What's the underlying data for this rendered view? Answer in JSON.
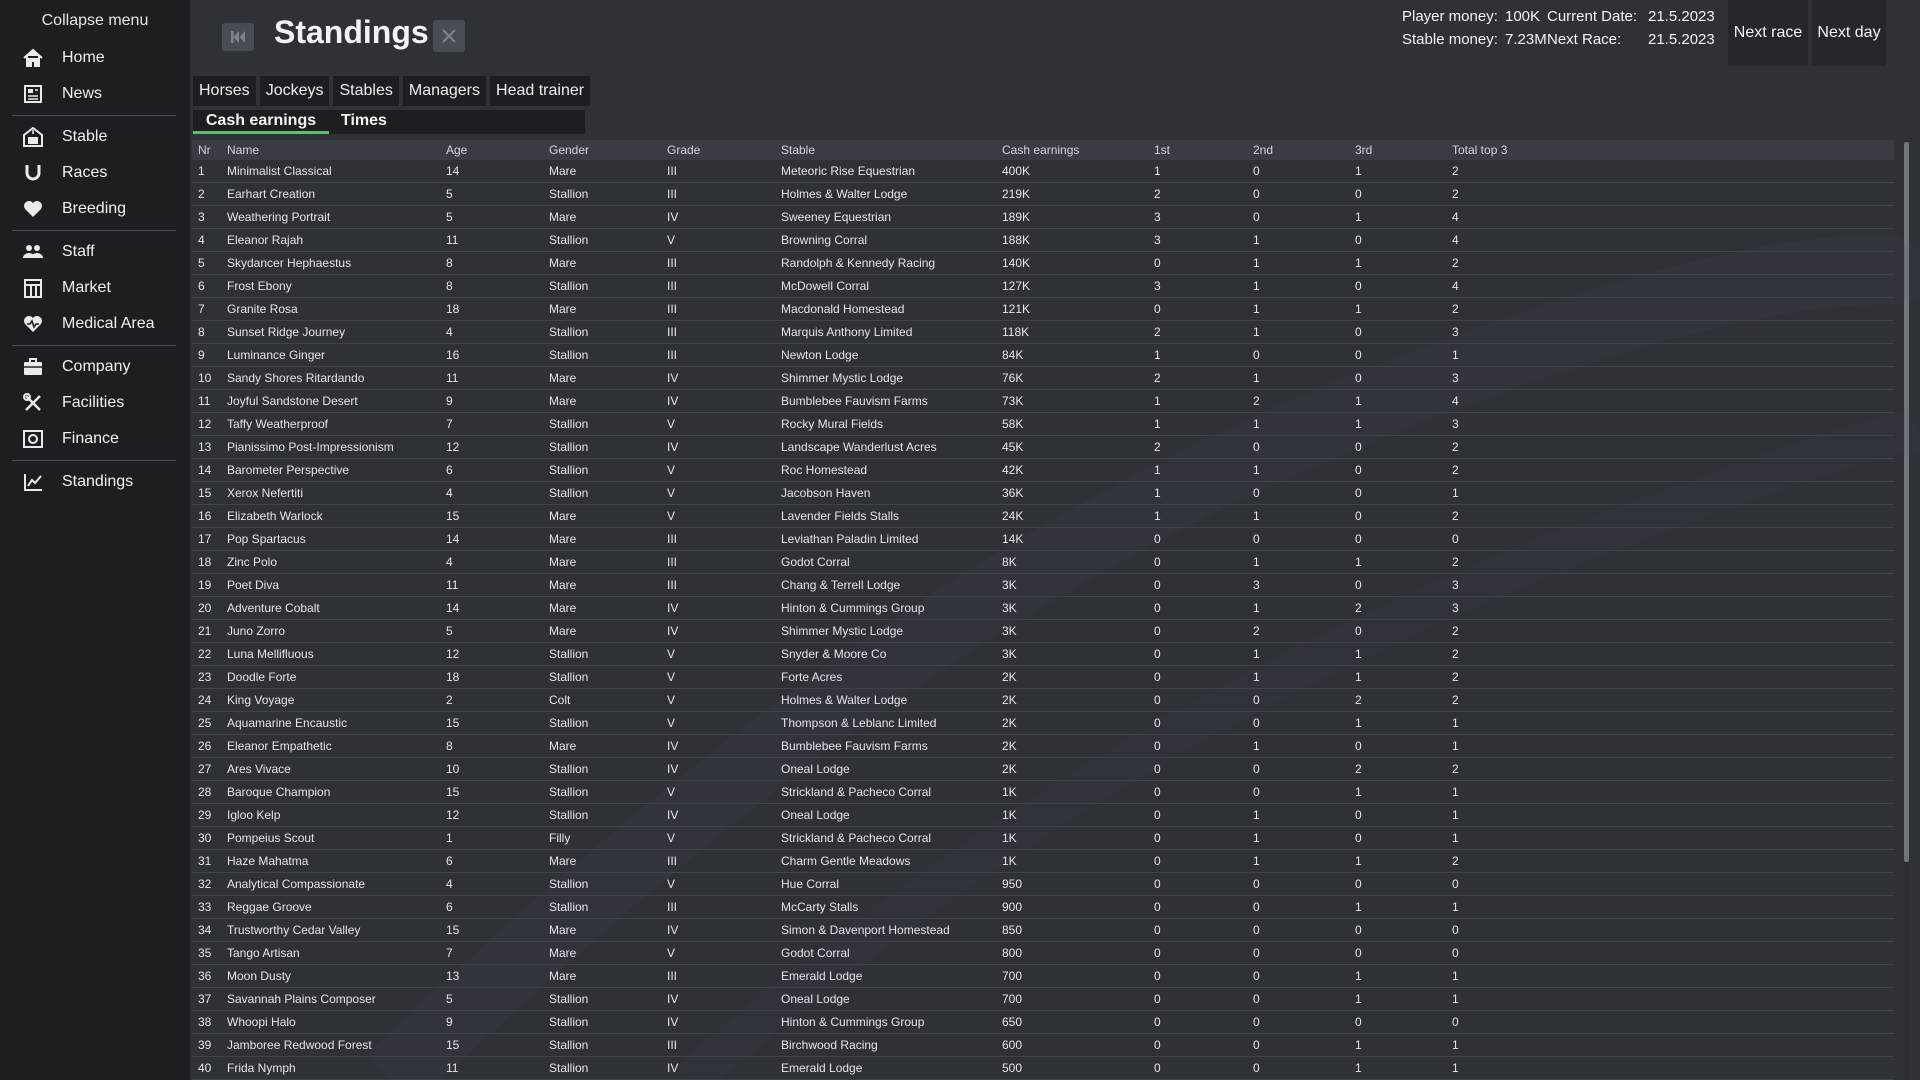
{
  "sidebar": {
    "collapse_label": "Collapse menu",
    "items": [
      {
        "label": "Home",
        "icon": "home-icon"
      },
      {
        "label": "News",
        "icon": "news-icon"
      },
      {
        "label": "Stable",
        "icon": "stable-icon"
      },
      {
        "label": "Races",
        "icon": "horseshoe-icon"
      },
      {
        "label": "Breeding",
        "icon": "heart-icon"
      },
      {
        "label": "Staff",
        "icon": "people-icon"
      },
      {
        "label": "Market",
        "icon": "market-icon"
      },
      {
        "label": "Medical Area",
        "icon": "medical-heart-icon"
      },
      {
        "label": "Company",
        "icon": "briefcase-icon"
      },
      {
        "label": "Facilities",
        "icon": "tools-icon"
      },
      {
        "label": "Finance",
        "icon": "finance-icon"
      },
      {
        "label": "Standings",
        "icon": "chart-line-icon"
      }
    ]
  },
  "header": {
    "title": "Standings",
    "player_money_label": "Player money:",
    "player_money": "100K",
    "current_date_label": "Current Date:",
    "current_date": "21.5.2023",
    "stable_money_label": "Stable money:",
    "stable_money": "7.23M",
    "next_race_label": "Next Race:",
    "next_race_date": "21.5.2023",
    "next_race_button": "Next race",
    "next_day_button": "Next day"
  },
  "tabs": {
    "categories": [
      "Horses",
      "Jockeys",
      "Stables",
      "Managers",
      "Head trainer"
    ],
    "active_category": "Horses",
    "sub": [
      "Cash earnings",
      "Times"
    ],
    "active_sub": "Cash earnings"
  },
  "colors": {
    "accent": "#5fbf6c",
    "sidebar_bg": "#1c1e22",
    "main_bg": "#2e3136"
  },
  "table": {
    "columns": [
      "Nr",
      "Name",
      "Age",
      "Gender",
      "Grade",
      "Stable",
      "Cash earnings",
      "1st",
      "2nd",
      "3rd",
      "Total top 3"
    ],
    "rows": [
      [
        "1",
        "Minimalist Classical",
        "14",
        "Mare",
        "III",
        "Meteoric Rise Equestrian",
        "400K",
        "1",
        "0",
        "1",
        "2"
      ],
      [
        "2",
        "Earhart Creation",
        "5",
        "Stallion",
        "III",
        "Holmes & Walter Lodge",
        "219K",
        "2",
        "0",
        "0",
        "2"
      ],
      [
        "3",
        "Weathering Portrait",
        "5",
        "Mare",
        "IV",
        "Sweeney Equestrian",
        "189K",
        "3",
        "0",
        "1",
        "4"
      ],
      [
        "4",
        "Eleanor Rajah",
        "11",
        "Stallion",
        "V",
        "Browning Corral",
        "188K",
        "3",
        "1",
        "0",
        "4"
      ],
      [
        "5",
        "Skydancer Hephaestus",
        "8",
        "Mare",
        "III",
        "Randolph & Kennedy Racing",
        "140K",
        "0",
        "1",
        "1",
        "2"
      ],
      [
        "6",
        "Frost Ebony",
        "8",
        "Stallion",
        "III",
        "McDowell Corral",
        "127K",
        "3",
        "1",
        "0",
        "4"
      ],
      [
        "7",
        "Granite Rosa",
        "18",
        "Mare",
        "III",
        "Macdonald Homestead",
        "121K",
        "0",
        "1",
        "1",
        "2"
      ],
      [
        "8",
        "Sunset Ridge Journey",
        "4",
        "Stallion",
        "III",
        "Marquis Anthony Limited",
        "118K",
        "2",
        "1",
        "0",
        "3"
      ],
      [
        "9",
        "Luminance Ginger",
        "16",
        "Stallion",
        "III",
        "Newton Lodge",
        "84K",
        "1",
        "0",
        "0",
        "1"
      ],
      [
        "10",
        "Sandy Shores Ritardando",
        "11",
        "Mare",
        "IV",
        "Shimmer Mystic Lodge",
        "76K",
        "2",
        "1",
        "0",
        "3"
      ],
      [
        "11",
        "Joyful Sandstone Desert",
        "9",
        "Mare",
        "IV",
        "Bumblebee Fauvism Farms",
        "73K",
        "1",
        "2",
        "1",
        "4"
      ],
      [
        "12",
        "Taffy Weatherproof",
        "7",
        "Stallion",
        "V",
        "Rocky Mural Fields",
        "58K",
        "1",
        "1",
        "1",
        "3"
      ],
      [
        "13",
        "Pianissimo Post-Impressionism",
        "12",
        "Stallion",
        "IV",
        "Landscape Wanderlust Acres",
        "45K",
        "2",
        "0",
        "0",
        "2"
      ],
      [
        "14",
        "Barometer Perspective",
        "6",
        "Stallion",
        "V",
        "Roc Homestead",
        "42K",
        "1",
        "1",
        "0",
        "2"
      ],
      [
        "15",
        "Xerox Nefertiti",
        "4",
        "Stallion",
        "V",
        "Jacobson Haven",
        "36K",
        "1",
        "0",
        "0",
        "1"
      ],
      [
        "16",
        "Elizabeth Warlock",
        "15",
        "Mare",
        "V",
        "Lavender Fields Stalls",
        "24K",
        "1",
        "1",
        "0",
        "2"
      ],
      [
        "17",
        "Pop Spartacus",
        "14",
        "Mare",
        "III",
        "Leviathan Paladin Limited",
        "14K",
        "0",
        "0",
        "0",
        "0"
      ],
      [
        "18",
        "Zinc Polo",
        "4",
        "Mare",
        "III",
        "Godot Corral",
        "8K",
        "0",
        "1",
        "1",
        "2"
      ],
      [
        "19",
        "Poet Diva",
        "11",
        "Mare",
        "III",
        "Chang & Terrell Lodge",
        "3K",
        "0",
        "3",
        "0",
        "3"
      ],
      [
        "20",
        "Adventure Cobalt",
        "14",
        "Mare",
        "IV",
        "Hinton & Cummings Group",
        "3K",
        "0",
        "1",
        "2",
        "3"
      ],
      [
        "21",
        "Juno Zorro",
        "5",
        "Mare",
        "IV",
        "Shimmer Mystic Lodge",
        "3K",
        "0",
        "2",
        "0",
        "2"
      ],
      [
        "22",
        "Luna Mellifluous",
        "12",
        "Stallion",
        "V",
        "Snyder & Moore Co",
        "3K",
        "0",
        "1",
        "1",
        "2"
      ],
      [
        "23",
        "Doodle Forte",
        "18",
        "Stallion",
        "V",
        "Forte Acres",
        "2K",
        "0",
        "1",
        "1",
        "2"
      ],
      [
        "24",
        "King Voyage",
        "2",
        "Colt",
        "V",
        "Holmes & Walter Lodge",
        "2K",
        "0",
        "0",
        "2",
        "2"
      ],
      [
        "25",
        "Aquamarine Encaustic",
        "15",
        "Stallion",
        "V",
        "Thompson & Leblanc Limited",
        "2K",
        "0",
        "0",
        "1",
        "1"
      ],
      [
        "26",
        "Eleanor Empathetic",
        "8",
        "Mare",
        "IV",
        "Bumblebee Fauvism Farms",
        "2K",
        "0",
        "1",
        "0",
        "1"
      ],
      [
        "27",
        "Ares Vivace",
        "10",
        "Stallion",
        "IV",
        "Oneal Lodge",
        "2K",
        "0",
        "0",
        "2",
        "2"
      ],
      [
        "28",
        "Baroque Champion",
        "15",
        "Stallion",
        "V",
        "Strickland & Pacheco Corral",
        "1K",
        "0",
        "0",
        "1",
        "1"
      ],
      [
        "29",
        "Igloo Kelp",
        "12",
        "Stallion",
        "IV",
        "Oneal Lodge",
        "1K",
        "0",
        "1",
        "0",
        "1"
      ],
      [
        "30",
        "Pompeius Scout",
        "1",
        "Filly",
        "V",
        "Strickland & Pacheco Corral",
        "1K",
        "0",
        "1",
        "0",
        "1"
      ],
      [
        "31",
        "Haze Mahatma",
        "6",
        "Mare",
        "III",
        "Charm Gentle Meadows",
        "1K",
        "0",
        "1",
        "1",
        "2"
      ],
      [
        "32",
        "Analytical Compassionate",
        "4",
        "Stallion",
        "V",
        "Hue Corral",
        "950",
        "0",
        "0",
        "0",
        "0"
      ],
      [
        "33",
        "Reggae Groove",
        "6",
        "Stallion",
        "III",
        "McCarty Stalls",
        "900",
        "0",
        "0",
        "1",
        "1"
      ],
      [
        "34",
        "Trustworthy Cedar Valley",
        "15",
        "Mare",
        "IV",
        "Simon & Davenport Homestead",
        "850",
        "0",
        "0",
        "0",
        "0"
      ],
      [
        "35",
        "Tango Artisan",
        "7",
        "Mare",
        "V",
        "Godot Corral",
        "800",
        "0",
        "0",
        "0",
        "0"
      ],
      [
        "36",
        "Moon Dusty",
        "13",
        "Mare",
        "III",
        "Emerald Lodge",
        "700",
        "0",
        "0",
        "1",
        "1"
      ],
      [
        "37",
        "Savannah Plains Composer",
        "5",
        "Stallion",
        "IV",
        "Oneal Lodge",
        "700",
        "0",
        "0",
        "1",
        "1"
      ],
      [
        "38",
        "Whoopi Halo",
        "9",
        "Stallion",
        "IV",
        "Hinton & Cummings Group",
        "650",
        "0",
        "0",
        "0",
        "0"
      ],
      [
        "39",
        "Jamboree Redwood Forest",
        "15",
        "Stallion",
        "III",
        "Birchwood Racing",
        "600",
        "0",
        "0",
        "1",
        "1"
      ],
      [
        "40",
        "Frida Nymph",
        "11",
        "Stallion",
        "IV",
        "Emerald Lodge",
        "500",
        "0",
        "0",
        "1",
        "1"
      ]
    ]
  }
}
